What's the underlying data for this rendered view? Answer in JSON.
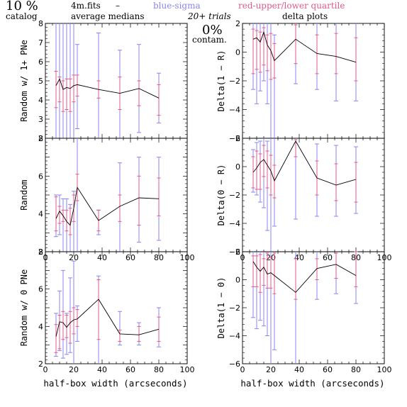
{
  "header": {
    "percent": "10 %",
    "catalog": "catalog",
    "file": "4m.fits",
    "dash": "–",
    "average_medians": "average medians",
    "blue_sigma": "blue-sigma",
    "red_quartile": "red-upper/lower quartile",
    "trials": "20+ trials",
    "delta_plots": "delta plots",
    "contam_pct": "0%",
    "contam": "contam."
  },
  "colors": {
    "sigma": "#8a86f0",
    "quartile": "#e05a8a",
    "line": "#000000"
  },
  "chart_data": [
    {
      "type": "line",
      "ylabel": "Random w/ 1+ PNe",
      "xlim": [
        0,
        100
      ],
      "ylim": [
        2,
        8
      ],
      "xticks": [
        "0",
        "20",
        "40",
        "60",
        "80",
        "100"
      ],
      "yticks": [
        "2",
        "3",
        "4",
        "5",
        "6",
        "7",
        "8"
      ],
      "show_x_ticklabels": false,
      "x": [
        7.5,
        10,
        12.5,
        15,
        17.5,
        20,
        22.5,
        37.5,
        52.5,
        66,
        80
      ],
      "y": [
        4.75,
        5.1,
        4.55,
        4.65,
        4.6,
        4.75,
        4.8,
        4.55,
        4.35,
        4.6,
        4.1
      ],
      "sigma_low": [
        2.0,
        2.0,
        2.0,
        2.0,
        2.0,
        2.0,
        2.5,
        2.0,
        2.0,
        2.3,
        2.8
      ],
      "sigma_high": [
        8.0,
        8.0,
        8.0,
        8.0,
        8.0,
        8.0,
        6.9,
        7.5,
        6.6,
        6.9,
        5.4
      ],
      "q_low": [
        3.6,
        3.9,
        3.4,
        3.5,
        3.4,
        3.9,
        4.2,
        4.1,
        3.5,
        3.7,
        3.2
      ],
      "q_high": [
        5.5,
        5.2,
        5.0,
        5.1,
        5.1,
        5.3,
        5.3,
        5.0,
        5.2,
        5.0,
        4.8
      ]
    },
    {
      "type": "line",
      "ylabel": "Delta(1 − R)",
      "xlim": [
        0,
        100
      ],
      "ylim": [
        -6,
        2
      ],
      "xticks": [
        "0",
        "20",
        "40",
        "60",
        "80",
        "100"
      ],
      "yticks": [
        "−6",
        "−4",
        "−2",
        "0",
        "2"
      ],
      "show_x_ticklabels": false,
      "x": [
        7.5,
        10,
        12.5,
        15,
        17.5,
        20,
        22.5,
        37.5,
        52.5,
        66,
        80
      ],
      "y": [
        0.9,
        1.0,
        0.7,
        1.4,
        0.5,
        0.1,
        -0.6,
        0.9,
        -0.1,
        -0.3,
        -0.7
      ],
      "sigma_low": [
        -2.6,
        -3.6,
        -2.7,
        -2.0,
        -3.6,
        -6.0,
        -6.0,
        -2.2,
        -2.6,
        -3.4,
        -3.4
      ],
      "sigma_high": [
        2.0,
        2.0,
        2.0,
        2.0,
        2.0,
        2.0,
        1.2,
        2.0,
        2.2,
        2.7,
        2.0
      ],
      "q_low": [
        -1.5,
        -1.2,
        -1.4,
        -0.9,
        -1.3,
        -1.9,
        -1.8,
        -0.8,
        -1.5,
        -1.5,
        -2.0
      ],
      "q_high": [
        1.6,
        1.5,
        1.4,
        1.7,
        1.2,
        1.3,
        0.6,
        1.9,
        1.2,
        1.3,
        1.0
      ]
    },
    {
      "type": "line",
      "ylabel": "Random",
      "xlim": [
        0,
        100
      ],
      "ylim": [
        2,
        8
      ],
      "xticks": [
        "0",
        "20",
        "40",
        "60",
        "80",
        "100"
      ],
      "yticks": [
        "2",
        "",
        "4",
        "",
        "6",
        "",
        "8"
      ],
      "show_x_ticklabels": true,
      "x": [
        7.5,
        10,
        12.5,
        15,
        17.5,
        20,
        22.5,
        37.5,
        52.5,
        66,
        80
      ],
      "y": [
        3.75,
        4.15,
        3.9,
        3.6,
        3.4,
        4.3,
        5.4,
        3.65,
        4.4,
        4.85,
        4.8
      ],
      "sigma_low": [
        2.8,
        2.9,
        2.0,
        2.0,
        2.0,
        2.0,
        2.0,
        2.9,
        2.0,
        2.5,
        2.6
      ],
      "sigma_high": [
        5.0,
        5.0,
        4.8,
        4.8,
        4.5,
        5.2,
        8.0,
        4.2,
        6.7,
        7.0,
        7.0
      ],
      "q_low": [
        3.1,
        3.5,
        3.6,
        3.1,
        2.9,
        3.6,
        4.7,
        3.1,
        3.6,
        3.4,
        3.9
      ],
      "q_high": [
        4.9,
        4.4,
        4.2,
        4.2,
        4.3,
        5.0,
        6.1,
        4.2,
        5.0,
        6.0,
        5.9
      ]
    },
    {
      "type": "line",
      "ylabel": "Delta(0 − R)",
      "xlim": [
        0,
        100
      ],
      "ylim": [
        -6,
        2
      ],
      "xticks": [
        "0",
        "20",
        "40",
        "60",
        "80",
        "100"
      ],
      "yticks": [
        "−6",
        "−4",
        "−2",
        "0",
        "2"
      ],
      "show_x_ticklabels": true,
      "x": [
        7.5,
        10,
        12.5,
        15,
        17.5,
        20,
        22.5,
        37.5,
        52.5,
        66,
        80
      ],
      "y": [
        -0.4,
        -0.1,
        0.3,
        0.5,
        0.1,
        -0.3,
        -1.0,
        1.8,
        -0.8,
        -1.3,
        -0.9
      ],
      "sigma_low": [
        -1.8,
        -2.0,
        -2.5,
        -2.9,
        -4.5,
        -6.0,
        -4.2,
        -3.7,
        -3.5,
        -3.5,
        -3.3
      ],
      "sigma_high": [
        1.2,
        1.7,
        1.8,
        2.0,
        1.8,
        2.0,
        2.0,
        2.0,
        1.6,
        1.5,
        1.4
      ],
      "q_low": [
        -1.5,
        -1.6,
        -1.6,
        -0.7,
        -1.5,
        -2.0,
        -2.2,
        0.7,
        -2.0,
        -2.4,
        -2.5
      ],
      "q_high": [
        0.7,
        1.1,
        0.9,
        1.5,
        1.1,
        0.8,
        0.1,
        1.9,
        0.4,
        0.2,
        0.3
      ]
    },
    {
      "type": "line",
      "ylabel": "Random w/ 0 PNe",
      "xlim": [
        0,
        100
      ],
      "ylim": [
        2,
        8
      ],
      "xticks": [
        "0",
        "20",
        "40",
        "60",
        "80",
        "100"
      ],
      "yticks": [
        "2",
        "",
        "4",
        "",
        "6",
        "",
        "8"
      ],
      "show_x_ticklabels": true,
      "x": [
        7.5,
        10,
        12.5,
        15,
        17.5,
        20,
        22.5,
        37.5,
        52.5,
        66,
        80
      ],
      "y": [
        3.45,
        4.25,
        4.2,
        3.95,
        4.2,
        4.35,
        4.4,
        5.45,
        3.6,
        3.55,
        3.85
      ],
      "sigma_low": [
        2.4,
        2.7,
        2.3,
        2.5,
        2.6,
        2.0,
        3.2,
        2.0,
        3.0,
        3.0,
        2.9
      ],
      "sigma_high": [
        4.7,
        5.9,
        7.0,
        4.7,
        6.6,
        7.5,
        5.1,
        6.7,
        4.8,
        4.2,
        5.0
      ],
      "q_low": [
        2.6,
        2.8,
        3.3,
        3.4,
        3.1,
        3.6,
        4.0,
        3.3,
        3.2,
        3.2,
        3.2
      ],
      "q_high": [
        4.1,
        4.6,
        4.8,
        4.6,
        4.8,
        5.0,
        4.9,
        6.5,
        3.8,
        4.0,
        4.5
      ]
    },
    {
      "type": "line",
      "ylabel": "Delta(1 − 0)",
      "xlim": [
        0,
        100
      ],
      "ylim": [
        -6,
        2
      ],
      "xticks": [
        "0",
        "20",
        "40",
        "60",
        "80",
        "100"
      ],
      "yticks": [
        "−6",
        "−4",
        "−2",
        "0",
        "2"
      ],
      "show_x_ticklabels": true,
      "x": [
        7.5,
        10,
        12.5,
        15,
        17.5,
        20,
        22.5,
        37.5,
        52.5,
        66,
        80
      ],
      "y": [
        1.3,
        0.9,
        0.6,
        0.9,
        0.4,
        0.5,
        0.3,
        -0.9,
        0.8,
        1.1,
        0.3
      ],
      "sigma_low": [
        -2.7,
        -3.5,
        -2.9,
        -3.3,
        -4.0,
        -6.0,
        -5.0,
        -6.0,
        -1.4,
        -1.0,
        -1.7
      ],
      "sigma_high": [
        2.0,
        2.0,
        2.0,
        2.0,
        2.0,
        2.0,
        2.0,
        2.0,
        2.0,
        2.0,
        2.0
      ],
      "q_low": [
        -0.5,
        -0.5,
        -0.9,
        -0.4,
        -0.6,
        -0.6,
        -1.0,
        -1.4,
        0.0,
        0.1,
        -0.5
      ],
      "q_high": [
        1.7,
        1.7,
        1.8,
        1.5,
        1.9,
        1.6,
        1.9,
        1.5,
        1.5,
        1.9,
        2.0
      ]
    }
  ],
  "xaxis_label": "half-box width (arcseconds)"
}
